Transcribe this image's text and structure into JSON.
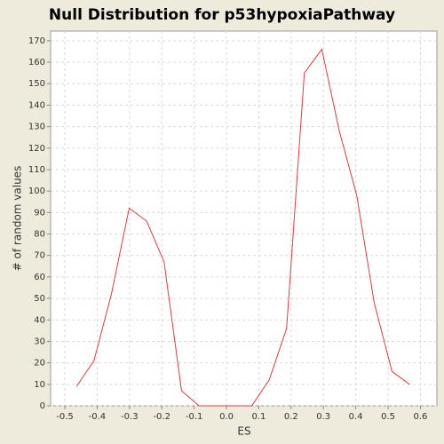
{
  "chart_data": {
    "type": "line",
    "title": "Null Distribution for p53hypoxiaPathway",
    "x_label": "ES",
    "y_label": "# of random values",
    "x": [
      -0.464,
      -0.41,
      -0.356,
      -0.301,
      -0.247,
      -0.193,
      -0.139,
      -0.085,
      -0.03,
      0.024,
      0.078,
      0.132,
      0.186,
      0.241,
      0.295,
      0.349,
      0.403,
      0.457,
      0.512,
      0.566
    ],
    "series": [
      {
        "name": "null distribution",
        "color": "#e8383c",
        "values": [
          9,
          21,
          52,
          92,
          86,
          67,
          7,
          0,
          0,
          0,
          0,
          12,
          36,
          155,
          166,
          128,
          98,
          48,
          16,
          10
        ]
      }
    ],
    "xlim": [
      -0.544,
      0.651
    ],
    "xticks": [
      -0.5,
      -0.4,
      -0.3,
      -0.2,
      -0.1,
      {
        "value": 0,
        "label": "0.0"
      },
      0.1,
      0.2,
      0.3,
      0.4,
      0.5,
      0.6
    ],
    "ylim": [
      0,
      174.5
    ],
    "yticks": [
      0,
      10,
      20,
      30,
      40,
      50,
      60,
      70,
      80,
      90,
      100,
      110,
      120,
      130,
      140,
      150,
      160,
      170
    ],
    "grid": true
  }
}
